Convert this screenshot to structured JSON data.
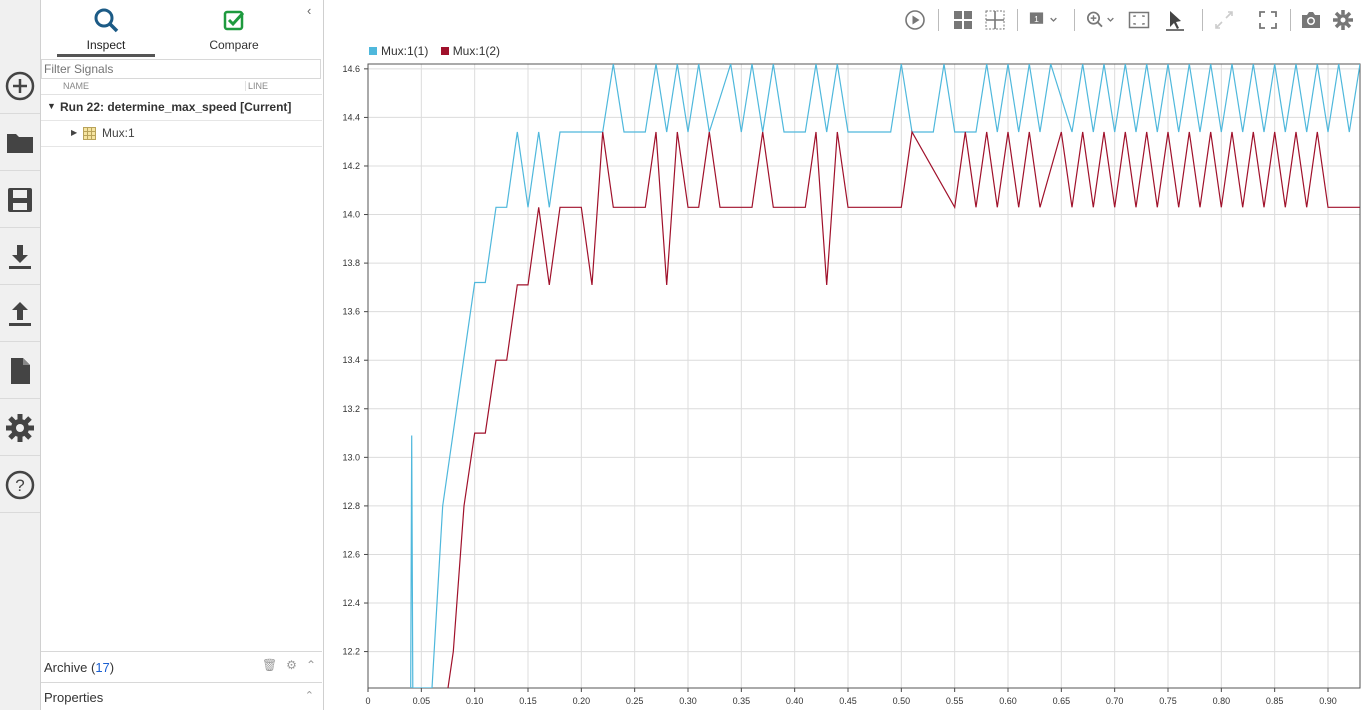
{
  "rail": {
    "items": [
      {
        "name": "new-run-button",
        "icon": "plus-circle-icon"
      },
      {
        "name": "open-button",
        "icon": "folder-icon"
      },
      {
        "name": "save-button",
        "icon": "save-icon"
      },
      {
        "name": "import-button",
        "icon": "import-icon"
      },
      {
        "name": "export-button",
        "icon": "export-icon"
      },
      {
        "name": "report-button",
        "icon": "document-icon"
      },
      {
        "name": "preferences-button",
        "icon": "gear-icon"
      },
      {
        "name": "help-button",
        "icon": "help-icon"
      }
    ]
  },
  "panel": {
    "tabs": {
      "inspect": "Inspect",
      "compare": "Compare"
    },
    "filter_placeholder": "Filter Signals",
    "columns": {
      "name": "NAME",
      "line": "LINE"
    },
    "run_label": "Run 22: determine_max_speed [Current]",
    "signal_label": "Mux:1",
    "archive": {
      "label": "Archive",
      "count": "17"
    },
    "properties_label": "Properties"
  },
  "legend": {
    "series1": "Mux:1(1)",
    "series2": "Mux:1(2)",
    "color1": "#4fb8dc",
    "color2": "#a0112b"
  },
  "chart_data": {
    "type": "line",
    "xlim": [
      0,
      0.93
    ],
    "ylim": [
      12.05,
      14.62
    ],
    "x_ticks": [
      "0",
      "0.05",
      "0.10",
      "0.15",
      "0.20",
      "0.25",
      "0.30",
      "0.35",
      "0.40",
      "0.45",
      "0.50",
      "0.55",
      "0.60",
      "0.65",
      "0.70",
      "0.75",
      "0.80",
      "0.85",
      "0.90"
    ],
    "y_ticks": [
      "12.2",
      "12.4",
      "12.6",
      "12.8",
      "13.0",
      "13.2",
      "13.4",
      "13.6",
      "13.8",
      "14.0",
      "14.2",
      "14.4",
      "14.6"
    ],
    "grid": true,
    "series": [
      {
        "name": "Mux:1(1)",
        "color": "#4fb8dc",
        "x": [
          0.04,
          0.041,
          0.042,
          0.06,
          0.07,
          0.1,
          0.11,
          0.12,
          0.13,
          0.14,
          0.15,
          0.16,
          0.17,
          0.18,
          0.22,
          0.23,
          0.24,
          0.26,
          0.27,
          0.28,
          0.29,
          0.3,
          0.31,
          0.32,
          0.34,
          0.35,
          0.36,
          0.37,
          0.38,
          0.39,
          0.41,
          0.42,
          0.43,
          0.44,
          0.45,
          0.46,
          0.49,
          0.5,
          0.51,
          0.53,
          0.54,
          0.55,
          0.57,
          0.58,
          0.59,
          0.6,
          0.61,
          0.62,
          0.63,
          0.64,
          0.66,
          0.67,
          0.68,
          0.69,
          0.7,
          0.71,
          0.72,
          0.73,
          0.74,
          0.75,
          0.76,
          0.77,
          0.78,
          0.79,
          0.8,
          0.81,
          0.82,
          0.83,
          0.84,
          0.85,
          0.86,
          0.87,
          0.88,
          0.89,
          0.9,
          0.91,
          0.92,
          0.93
        ],
        "y": [
          12.05,
          13.09,
          12.05,
          12.05,
          12.8,
          13.72,
          13.72,
          14.03,
          14.03,
          14.34,
          14.03,
          14.34,
          14.03,
          14.34,
          14.34,
          14.62,
          14.34,
          14.34,
          14.62,
          14.34,
          14.62,
          14.34,
          14.62,
          14.34,
          14.62,
          14.34,
          14.62,
          14.34,
          14.62,
          14.34,
          14.34,
          14.62,
          14.34,
          14.62,
          14.34,
          14.34,
          14.34,
          14.62,
          14.34,
          14.34,
          14.62,
          14.34,
          14.34,
          14.62,
          14.34,
          14.62,
          14.34,
          14.62,
          14.34,
          14.62,
          14.34,
          14.62,
          14.34,
          14.62,
          14.34,
          14.62,
          14.34,
          14.62,
          14.34,
          14.62,
          14.34,
          14.62,
          14.34,
          14.62,
          14.34,
          14.62,
          14.34,
          14.62,
          14.34,
          14.62,
          14.34,
          14.62,
          14.34,
          14.62,
          14.34,
          14.62,
          14.34,
          14.62
        ]
      },
      {
        "name": "Mux:1(2)",
        "color": "#a0112b",
        "x": [
          0.075,
          0.08,
          0.09,
          0.1,
          0.11,
          0.12,
          0.13,
          0.14,
          0.15,
          0.16,
          0.17,
          0.18,
          0.2,
          0.21,
          0.22,
          0.23,
          0.26,
          0.27,
          0.28,
          0.29,
          0.3,
          0.31,
          0.32,
          0.33,
          0.36,
          0.37,
          0.38,
          0.41,
          0.42,
          0.43,
          0.44,
          0.45,
          0.48,
          0.5,
          0.51,
          0.55,
          0.56,
          0.57,
          0.58,
          0.59,
          0.6,
          0.61,
          0.62,
          0.63,
          0.65,
          0.66,
          0.67,
          0.68,
          0.69,
          0.7,
          0.71,
          0.72,
          0.73,
          0.74,
          0.75,
          0.76,
          0.77,
          0.78,
          0.79,
          0.8,
          0.81,
          0.82,
          0.83,
          0.84,
          0.85,
          0.86,
          0.87,
          0.88,
          0.89,
          0.9,
          0.91,
          0.92,
          0.93
        ],
        "y": [
          12.05,
          12.2,
          12.8,
          13.1,
          13.1,
          13.4,
          13.4,
          13.71,
          13.71,
          14.03,
          13.71,
          14.03,
          14.03,
          13.71,
          14.34,
          14.03,
          14.03,
          14.34,
          13.71,
          14.34,
          14.03,
          14.03,
          14.34,
          14.03,
          14.03,
          14.34,
          14.03,
          14.03,
          14.34,
          13.71,
          14.34,
          14.03,
          14.03,
          14.03,
          14.34,
          14.03,
          14.34,
          14.03,
          14.34,
          14.03,
          14.34,
          14.03,
          14.34,
          14.03,
          14.34,
          14.03,
          14.34,
          14.03,
          14.34,
          14.03,
          14.34,
          14.03,
          14.34,
          14.03,
          14.34,
          14.03,
          14.34,
          14.03,
          14.34,
          14.03,
          14.34,
          14.03,
          14.34,
          14.03,
          14.34,
          14.03,
          14.34,
          14.03,
          14.34,
          14.03,
          14.03,
          14.03,
          14.03
        ]
      }
    ]
  }
}
